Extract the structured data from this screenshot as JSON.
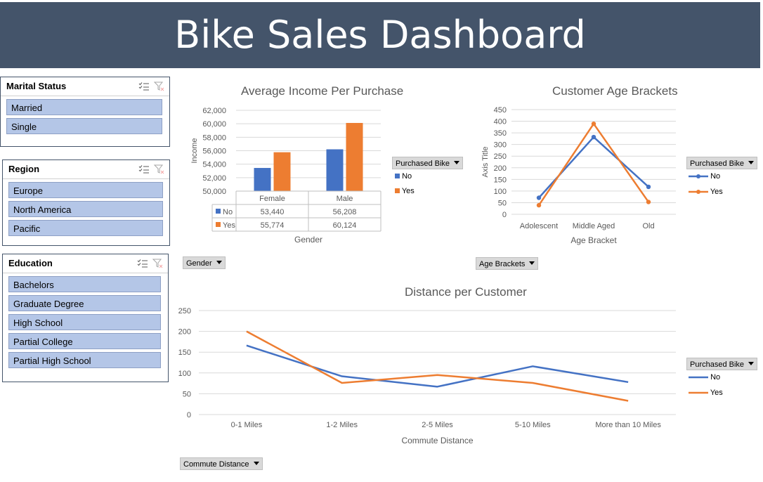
{
  "header": {
    "title": "Bike Sales Dashboard"
  },
  "slicers": {
    "marital_status": {
      "title": "Marital Status",
      "items": [
        "Married",
        "Single"
      ]
    },
    "region": {
      "title": "Region",
      "items": [
        "Europe",
        "North America",
        "Pacific"
      ]
    },
    "education": {
      "title": "Education",
      "items": [
        "Bachelors",
        "Graduate Degree",
        "High School",
        "Partial College",
        "Partial High School"
      ]
    }
  },
  "field_buttons": {
    "gender": "Gender",
    "age_brackets": "Age Brackets",
    "commute_distance": "Commute Distance",
    "purchased_bike": "Purchased Bike"
  },
  "colors": {
    "no": "#4472c4",
    "yes": "#ed7d31",
    "banner": "#44546a",
    "slicer_item": "#b4c6e7"
  },
  "chart_data": [
    {
      "type": "bar",
      "title": "Average Income Per Purchase",
      "xlabel": "Gender",
      "ylabel": "Income",
      "categories": [
        "Female",
        "Male"
      ],
      "series": [
        {
          "name": "No",
          "values": [
            53440,
            56208
          ],
          "labels": [
            "53,440",
            "56,208"
          ]
        },
        {
          "name": "Yes",
          "values": [
            55774,
            60124
          ],
          "labels": [
            "55,774",
            "60,124"
          ]
        }
      ],
      "ylim": [
        50000,
        62000
      ],
      "yticks": [
        "50,000",
        "52,000",
        "54,000",
        "56,000",
        "58,000",
        "60,000",
        "62,000"
      ],
      "legend_title": "Purchased Bike",
      "data_table": true,
      "grid": true
    },
    {
      "type": "line",
      "title": "Customer Age Brackets",
      "xlabel": "Age Bracket",
      "ylabel": "Axis Title",
      "categories": [
        "Adolescent",
        "Middle Aged",
        "Old"
      ],
      "series": [
        {
          "name": "No",
          "values": [
            71,
            332,
            118
          ]
        },
        {
          "name": "Yes",
          "values": [
            39,
            389,
            53
          ]
        }
      ],
      "ylim": [
        0,
        450
      ],
      "yticks": [
        "0",
        "50",
        "100",
        "150",
        "200",
        "250",
        "300",
        "350",
        "400",
        "450"
      ],
      "legend_title": "Purchased Bike",
      "grid": true
    },
    {
      "type": "line",
      "title": "Distance per Customer",
      "xlabel": "Commute Distance",
      "ylabel": "",
      "categories": [
        "0-1 Miles",
        "1-2 Miles",
        "2-5 Miles",
        "5-10 Miles",
        "More than 10 Miles"
      ],
      "series": [
        {
          "name": "No",
          "values": [
            166,
            92,
            67,
            116,
            78
          ]
        },
        {
          "name": "Yes",
          "values": [
            200,
            76,
            95,
            76,
            33
          ]
        }
      ],
      "ylim": [
        0,
        250
      ],
      "yticks": [
        "0",
        "50",
        "100",
        "150",
        "200",
        "250"
      ],
      "legend_title": "Purchased Bike",
      "grid": true
    }
  ]
}
